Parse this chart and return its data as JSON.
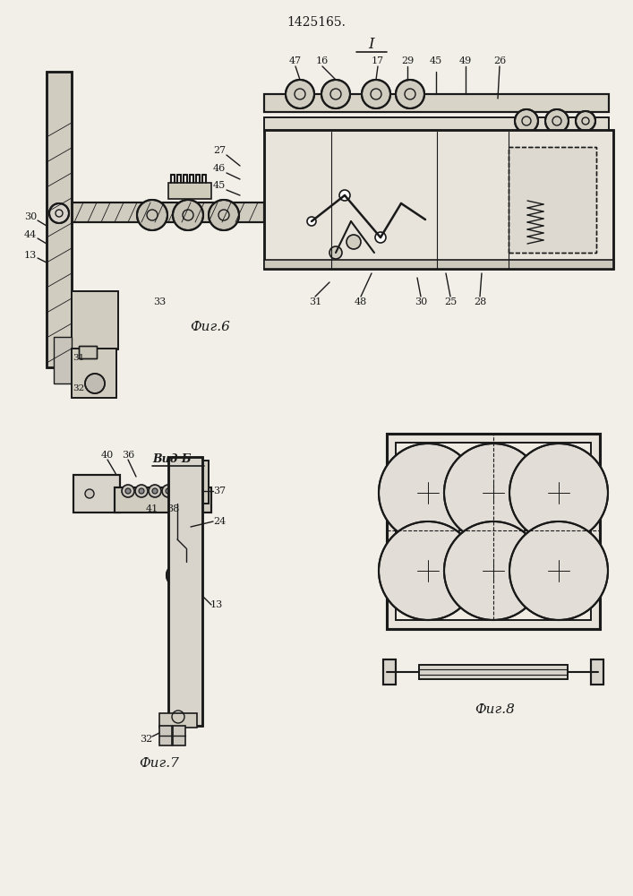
{
  "title": "1425165.",
  "bg_color": "#f2efe8",
  "line_color": "#1a1a1a",
  "fig6_label": "Фиг.6",
  "fig7_label": "Фиг.7",
  "fig8_label": "Фиг.8",
  "vid_b_label": "Вид Б",
  "label_I": "I"
}
